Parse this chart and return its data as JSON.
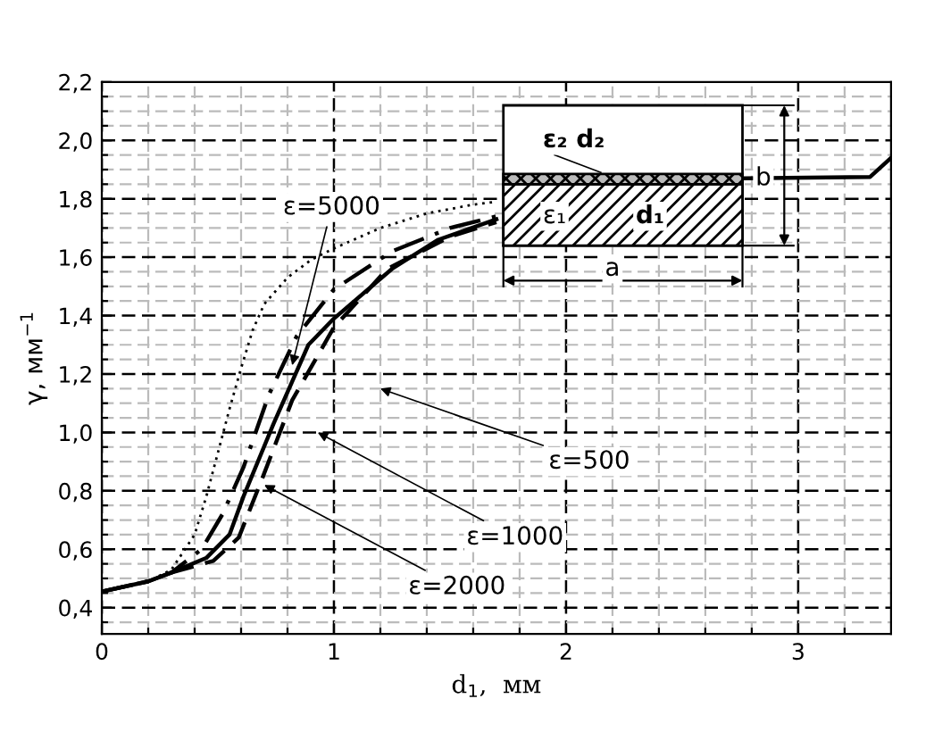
{
  "chart_data": {
    "type": "line",
    "xlabel": "d$_{1}$,  мм",
    "ylabel": "γ, мм$^{−1}$",
    "xlim": [
      0,
      3.4
    ],
    "ylim": [
      0.31,
      2.2
    ],
    "xticks": [
      0,
      {
        "value": 0.2,
        "label": null
      },
      {
        "value": 0.4,
        "label": null
      },
      {
        "value": 0.6,
        "label": null
      },
      {
        "value": 0.8,
        "label": null
      },
      1,
      {
        "value": 1.2,
        "label": null
      },
      {
        "value": 1.4,
        "label": null
      },
      {
        "value": 1.6,
        "label": null
      },
      {
        "value": 1.8,
        "label": null
      },
      2,
      {
        "value": 2.2,
        "label": null
      },
      {
        "value": 2.4,
        "label": null
      },
      {
        "value": 2.6,
        "label": null
      },
      {
        "value": 2.8,
        "label": null
      },
      3,
      {
        "value": 3.2,
        "label": null
      }
    ],
    "yticks": [
      {
        "value": 0.35,
        "label": null
      },
      {
        "value": 0.4,
        "label": "0,4"
      },
      {
        "value": 0.45,
        "label": null
      },
      {
        "value": 0.5,
        "label": null
      },
      {
        "value": 0.55,
        "label": null
      },
      {
        "value": 0.6,
        "label": "0,6"
      },
      {
        "value": 0.65,
        "label": null
      },
      {
        "value": 0.7,
        "label": null
      },
      {
        "value": 0.75,
        "label": null
      },
      {
        "value": 0.8,
        "label": "0,8"
      },
      {
        "value": 0.85,
        "label": null
      },
      {
        "value": 0.9,
        "label": null
      },
      {
        "value": 0.95,
        "label": null
      },
      {
        "value": 1.0,
        "label": "1,0"
      },
      {
        "value": 1.05,
        "label": null
      },
      {
        "value": 1.1,
        "label": null
      },
      {
        "value": 1.15,
        "label": null
      },
      {
        "value": 1.2,
        "label": "1,2"
      },
      {
        "value": 1.25,
        "label": null
      },
      {
        "value": 1.3,
        "label": null
      },
      {
        "value": 1.35,
        "label": null
      },
      {
        "value": 1.4,
        "label": "1,4"
      },
      {
        "value": 1.45,
        "label": null
      },
      {
        "value": 1.5,
        "label": null
      },
      {
        "value": 1.55,
        "label": null
      },
      {
        "value": 1.6,
        "label": "1,6"
      },
      {
        "value": 1.65,
        "label": null
      },
      {
        "value": 1.7,
        "label": null
      },
      {
        "value": 1.75,
        "label": null
      },
      {
        "value": 1.8,
        "label": "1,8"
      },
      {
        "value": 1.85,
        "label": null
      },
      {
        "value": 1.9,
        "label": null
      },
      {
        "value": 1.95,
        "label": null
      },
      {
        "value": 2.0,
        "label": "2,0"
      },
      {
        "value": 2.05,
        "label": null
      },
      {
        "value": 2.1,
        "label": null
      },
      {
        "value": 2.15,
        "label": null
      },
      {
        "value": 2.2,
        "label": "2,2"
      }
    ],
    "grid": true,
    "series": [
      {
        "color": "#000000",
        "line_style": "dotted",
        "x": [
          0,
          0.2,
          0.3,
          0.4,
          0.45,
          0.5,
          0.55,
          0.6,
          0.65,
          0.7,
          0.8,
          0.9,
          1.0,
          1.2,
          1.4,
          1.6,
          1.7
        ],
        "values": [
          0.455,
          0.49,
          0.53,
          0.65,
          0.78,
          0.93,
          1.08,
          1.22,
          1.35,
          1.44,
          1.53,
          1.59,
          1.63,
          1.7,
          1.75,
          1.78,
          1.79
        ]
      },
      {
        "color": "#000000",
        "line_style": "dashdot",
        "x": [
          0,
          0.2,
          0.3,
          0.43,
          0.52,
          0.61,
          0.72,
          0.84,
          1.0,
          1.25,
          1.5,
          1.7
        ],
        "values": [
          0.455,
          0.49,
          0.52,
          0.6,
          0.72,
          0.88,
          1.13,
          1.33,
          1.49,
          1.62,
          1.7,
          1.74
        ]
      },
      {
        "color": "#000000",
        "line_style": "solid",
        "x": [
          0,
          0.2,
          0.3,
          0.45,
          0.55,
          0.61,
          0.74,
          0.89,
          1.0,
          1.25,
          1.45,
          1.7,
          2.2,
          2.77,
          3.31,
          3.4
        ],
        "values": [
          0.455,
          0.49,
          0.52,
          0.57,
          0.65,
          0.78,
          1.03,
          1.3,
          1.39,
          1.56,
          1.66,
          1.73,
          null,
          1.87,
          1.875,
          1.94
        ]
      },
      {
        "color": "#000000",
        "line_style": "dashed",
        "x": [
          0,
          0.2,
          0.3,
          0.48,
          0.59,
          0.69,
          0.82,
          1.0,
          1.23,
          1.5,
          1.7
        ],
        "values": [
          0.455,
          0.49,
          0.52,
          0.56,
          0.64,
          0.84,
          1.11,
          1.36,
          1.56,
          1.67,
          1.72
        ]
      }
    ],
    "annotations": [
      {
        "text": "ε=5000",
        "x": 0.82,
        "y": 1.23
      },
      "ε=500",
      "ε=1000",
      {
        "text": "ε=2000",
        "x": 0.7,
        "y": 0.82
      },
      "ε₂ d₂",
      "ε₁",
      "d₁",
      "a",
      "b"
    ]
  }
}
